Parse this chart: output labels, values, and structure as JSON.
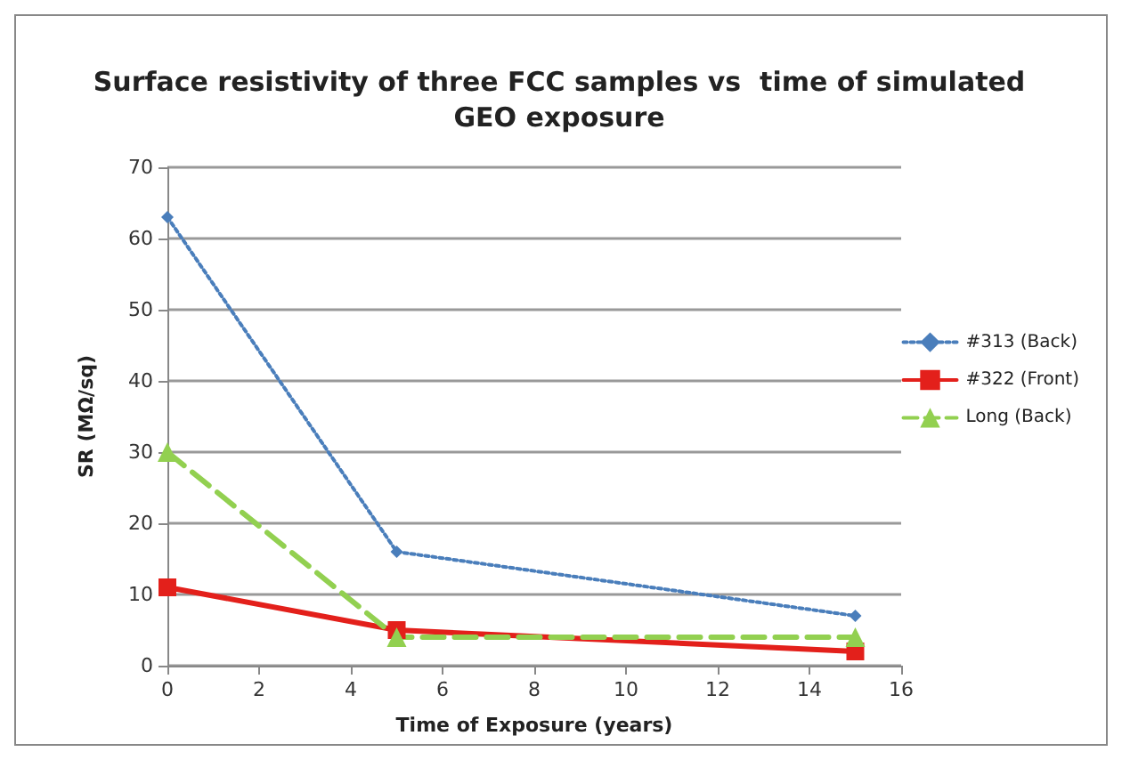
{
  "chart_data": {
    "type": "line",
    "title": "Surface resistivity of three FCC samples vs  time of simulated\nGEO exposure",
    "xlabel": "Time of Exposure (years)",
    "ylabel": "SR (MΩ/sq)",
    "x": [
      0,
      5,
      15
    ],
    "series": [
      {
        "name": "#313 (Back)",
        "color": "#4a7ebb",
        "values": [
          63,
          16,
          7
        ],
        "marker": "diamond",
        "line_style": "dotted"
      },
      {
        "name": "#322 (Front)",
        "color": "#e3201b",
        "values": [
          11,
          5,
          2
        ],
        "marker": "square",
        "line_style": "solid"
      },
      {
        "name": "Long (Back)",
        "color": "#92d050",
        "values": [
          30,
          4,
          4
        ],
        "marker": "triangle",
        "line_style": "dashed"
      }
    ],
    "xlim": [
      0,
      16
    ],
    "xticks": [
      0,
      2,
      4,
      6,
      8,
      10,
      12,
      14,
      16
    ],
    "ylim": [
      0,
      70
    ],
    "yticks": [
      0,
      10,
      20,
      30,
      40,
      50,
      60,
      70
    ],
    "grid": "y",
    "legend": "right"
  }
}
